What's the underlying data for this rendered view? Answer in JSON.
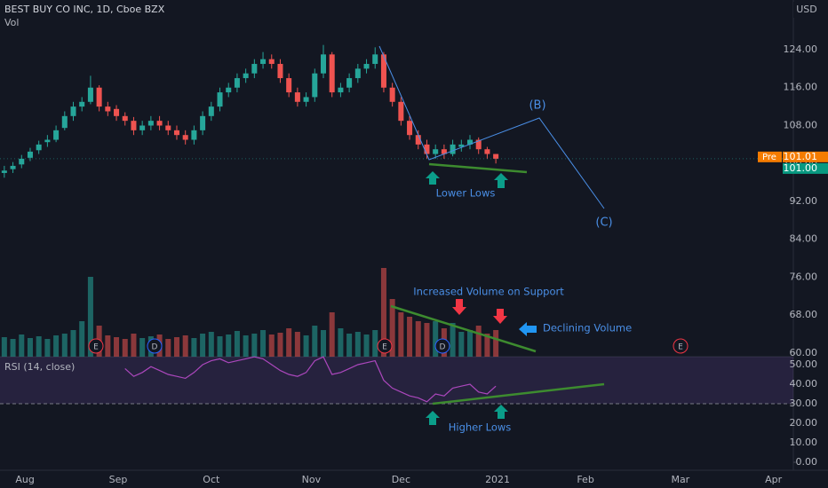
{
  "chart_data": [
    {
      "type": "candlestick",
      "title": "BEST BUY CO INC, 1D, Cboe BZX",
      "currency": "USD",
      "up_color": "#26a69a",
      "down_color": "#ef5350",
      "open": [
        98,
        98.8,
        99.8,
        101.2,
        102.8,
        104.5,
        105,
        107.5,
        110,
        112,
        113,
        116,
        112,
        111.5,
        110,
        109,
        107,
        108,
        109,
        108,
        107,
        106,
        105,
        107,
        110,
        112,
        115,
        116,
        118,
        119,
        121,
        122,
        121,
        118,
        115,
        113,
        114,
        119,
        123,
        115,
        116,
        118,
        120,
        121,
        123,
        116,
        113,
        109,
        106,
        104,
        102,
        103,
        102,
        103.5,
        104,
        105,
        103,
        102
      ],
      "high": [
        99.5,
        100.3,
        101.8,
        103.3,
        104.8,
        106,
        108,
        111,
        113,
        114,
        118.5,
        116.5,
        113,
        112.3,
        110.8,
        109.8,
        109,
        110,
        110,
        109,
        108,
        107,
        108,
        111,
        113,
        116,
        117,
        119,
        120,
        122,
        123.5,
        123,
        122,
        119,
        116,
        115,
        120,
        125,
        123.5,
        117,
        119,
        121,
        122,
        124.5,
        123.5,
        117,
        114,
        110,
        107,
        105,
        104,
        104,
        105,
        105,
        106,
        105.5,
        103.5,
        102
      ],
      "low": [
        97,
        98,
        99,
        100.5,
        102,
        103.5,
        104.5,
        107,
        109,
        111,
        112.5,
        111,
        110,
        109,
        108,
        106,
        106,
        107,
        107,
        106,
        105,
        104,
        104,
        106,
        109,
        111,
        114,
        115,
        117,
        118,
        120,
        120,
        117,
        114,
        112,
        112,
        113,
        118,
        114,
        114,
        115,
        117,
        119,
        120,
        115,
        112,
        108,
        105,
        103,
        101,
        101,
        101,
        101.5,
        102.5,
        103,
        102,
        101,
        100
      ],
      "close": [
        98.5,
        99.5,
        101,
        102.5,
        104,
        105,
        107,
        110,
        112,
        113,
        116,
        112,
        111,
        110,
        109,
        107,
        108,
        109,
        108,
        107,
        106,
        105,
        107,
        110,
        112,
        115,
        116,
        118,
        119,
        121,
        122,
        121,
        118,
        115,
        113,
        114,
        119,
        123,
        115,
        116,
        118,
        120,
        121,
        123,
        116,
        113,
        109,
        106,
        104,
        102,
        103,
        102,
        104,
        104,
        105,
        103,
        102,
        101
      ],
      "xlim": [
        -0.5,
        91.5
      ],
      "xticks": [
        {
          "value": 2.4,
          "label": "Aug"
        },
        {
          "value": 13.2,
          "label": "Sep"
        },
        {
          "value": 24,
          "label": "Oct"
        },
        {
          "value": 35.6,
          "label": "Nov"
        },
        {
          "value": 46,
          "label": "Dec"
        },
        {
          "value": 57.2,
          "label": "2021"
        },
        {
          "value": 67.4,
          "label": "Feb"
        },
        {
          "value": 78.4,
          "label": "Mar"
        },
        {
          "value": 89.2,
          "label": "Apr"
        }
      ],
      "ylim": [
        59.25,
        134.48
      ],
      "yticks": [
        {
          "value": 60,
          "label": "60.00"
        },
        {
          "value": 68,
          "label": "68.00"
        },
        {
          "value": 76,
          "label": "76.00"
        },
        {
          "value": 84,
          "label": "84.00"
        },
        {
          "value": 92,
          "label": "92.00"
        },
        {
          "value": 100,
          "label": "100.00"
        },
        {
          "value": 108,
          "label": "108.00"
        },
        {
          "value": 116,
          "label": "116.00"
        },
        {
          "value": 124,
          "label": "124.00"
        }
      ],
      "pre_tag": "Pre",
      "pre_price": {
        "value": 101.01,
        "label": "101.01"
      },
      "last_price": {
        "value": 101,
        "label": "101.00"
      }
    },
    {
      "type": "bar",
      "title": "Vol",
      "values": [
        2.2,
        2.0,
        2.5,
        2.1,
        2.3,
        2.0,
        2.4,
        2.6,
        3.0,
        4.0,
        9.0,
        3.5,
        2.4,
        2.2,
        2.0,
        2.6,
        2.1,
        2.3,
        2.5,
        2.0,
        2.2,
        2.4,
        2.1,
        2.6,
        2.8,
        2.3,
        2.5,
        2.9,
        2.4,
        2.6,
        3.0,
        2.5,
        2.7,
        3.2,
        2.8,
        2.4,
        3.5,
        3.0,
        5.0,
        3.2,
        2.6,
        2.8,
        2.5,
        3.0,
        10.0,
        6.5,
        5.0,
        4.5,
        4.0,
        3.8,
        4.0,
        3.2,
        3.8,
        2.8,
        3.0,
        3.5,
        2.6,
        3.0
      ],
      "ylim": [
        0,
        11
      ]
    },
    {
      "type": "line",
      "title": "RSI (14, close)",
      "color": "#ab47bc",
      "values": [
        null,
        null,
        null,
        null,
        null,
        null,
        null,
        null,
        null,
        null,
        null,
        null,
        null,
        null,
        48,
        44,
        46,
        49,
        47,
        45,
        44,
        43,
        46,
        50,
        52,
        53,
        51,
        52,
        53,
        54,
        53,
        50,
        47,
        45,
        44,
        46,
        52,
        54,
        45,
        46,
        48,
        50,
        51,
        52,
        42,
        38,
        36,
        34,
        33,
        31,
        35,
        34,
        38,
        39,
        40,
        36,
        35,
        39
      ],
      "ylim": [
        -4.09,
        54.09
      ],
      "yticks": [
        {
          "value": 0,
          "label": "0.00"
        },
        {
          "value": 10,
          "label": "10.00"
        },
        {
          "value": 20,
          "label": "20.00"
        },
        {
          "value": 30,
          "label": "30.00"
        },
        {
          "value": 40,
          "label": "40.00"
        },
        {
          "value": 50,
          "label": "50.00"
        }
      ],
      "bands": [
        30,
        70
      ]
    }
  ],
  "annotations": {
    "wave_b": "(B)",
    "wave_c": "(C)",
    "lower_lows": "Lower Lows",
    "increased_volume": "Increased Volume on Support",
    "declining_volume": "Declining Volume",
    "higher_lows": "Higher Lows",
    "events": [
      "E",
      "D",
      "E",
      "D",
      "E"
    ]
  }
}
